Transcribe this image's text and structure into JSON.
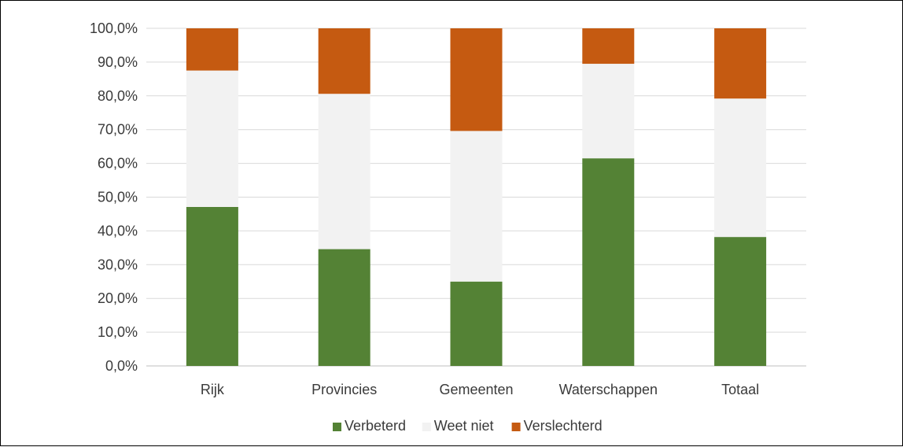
{
  "chart_data": {
    "type": "bar",
    "stacked": true,
    "categories": [
      "Rijk",
      "Provincies",
      "Gemeenten",
      "Waterschappen",
      "Totaal"
    ],
    "series": [
      {
        "name": "Verbeterd",
        "color": "#548235",
        "values": [
          47.1,
          34.6,
          25.0,
          61.5,
          38.2
        ]
      },
      {
        "name": "Weet niet",
        "color": "#f2f2f2",
        "values": [
          40.4,
          46.0,
          44.6,
          28.0,
          41.0
        ]
      },
      {
        "name": "Verslechterd",
        "color": "#c55a11",
        "values": [
          12.5,
          19.4,
          30.4,
          10.5,
          20.8
        ]
      }
    ],
    "ylim": [
      0,
      100
    ],
    "yticks": [
      0,
      10,
      20,
      30,
      40,
      50,
      60,
      70,
      80,
      90,
      100
    ],
    "ytick_labels": [
      "0,0%",
      "10,0%",
      "20,0%",
      "30,0%",
      "40,0%",
      "50,0%",
      "60,0%",
      "70,0%",
      "80,0%",
      "90,0%",
      "100,0%"
    ],
    "title": "",
    "xlabel": "",
    "ylabel": "",
    "grid": true,
    "legend_position": "bottom"
  }
}
